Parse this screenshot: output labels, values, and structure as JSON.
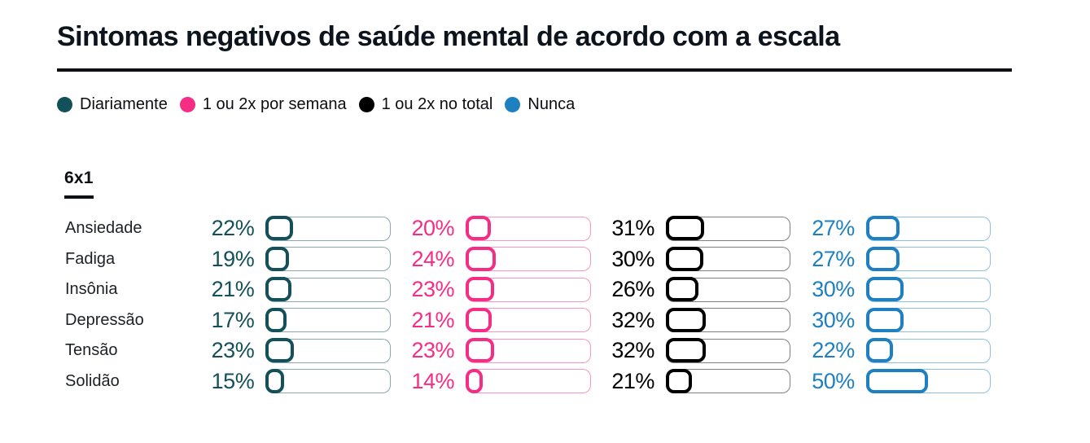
{
  "title": "Sintomas negativos de saúde mental de acordo com a escala",
  "group_label": "6x1",
  "legend": [
    {
      "label": "Diariamente",
      "color": "#14505a"
    },
    {
      "label": "1 ou 2x por semana",
      "color": "#f62d84"
    },
    {
      "label": "1 ou 2x no total",
      "color": "#000000"
    },
    {
      "label": "Nunca",
      "color": "#1e80c0"
    }
  ],
  "chart_data": {
    "type": "bar",
    "title": "Sintomas negativos de saúde mental de acordo com a escala",
    "group": "6x1",
    "categories": [
      "Ansiedade",
      "Fadiga",
      "Insônia",
      "Depressão",
      "Tensão",
      "Solidão"
    ],
    "series": [
      {
        "name": "Diariamente",
        "color": "#14505a",
        "values": [
          22,
          19,
          21,
          17,
          23,
          15
        ]
      },
      {
        "name": "1 ou 2x por semana",
        "color": "#f62d84",
        "values": [
          20,
          24,
          23,
          21,
          23,
          14
        ]
      },
      {
        "name": "1 ou 2x no total",
        "color": "#000000",
        "values": [
          31,
          30,
          26,
          32,
          32,
          21
        ]
      },
      {
        "name": "Nunca",
        "color": "#1e80c0",
        "values": [
          27,
          27,
          30,
          30,
          22,
          50
        ]
      }
    ],
    "value_format": "percent",
    "value_suffix": "%",
    "xlim": [
      0,
      100
    ],
    "legend_position": "top",
    "grid": false
  }
}
